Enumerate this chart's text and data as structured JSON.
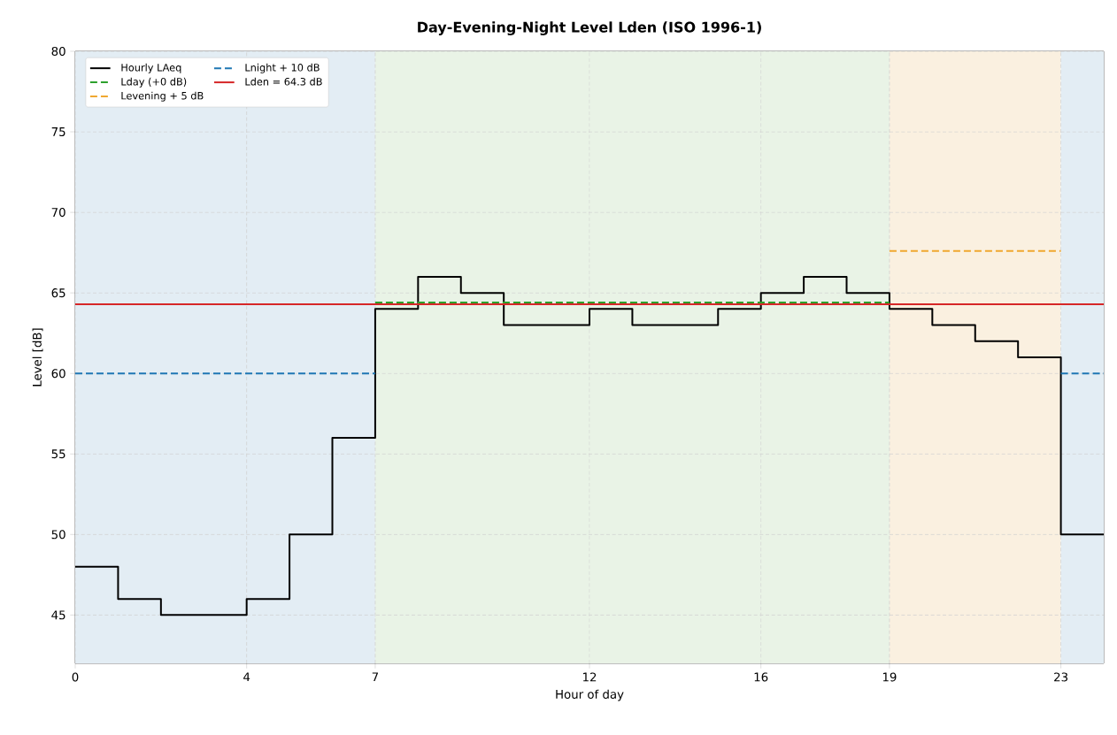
{
  "chart_data": {
    "type": "step",
    "title": "Day-Evening-Night Level Lden (ISO 1996-1)",
    "xlabel": "Hour of day",
    "ylabel": "Level [dB]",
    "xlim": [
      0,
      24
    ],
    "ylim": [
      42,
      80
    ],
    "xticks": [
      0,
      4,
      7,
      12,
      16,
      19,
      23
    ],
    "yticks": [
      45,
      50,
      55,
      60,
      65,
      70,
      75,
      80
    ],
    "grid": true,
    "legend": "top left",
    "series": [
      {
        "name": "Hourly LAeq",
        "color": "#000000",
        "x": [
          0,
          1,
          2,
          3,
          4,
          5,
          6,
          7,
          8,
          9,
          10,
          11,
          12,
          13,
          14,
          15,
          16,
          17,
          18,
          19,
          20,
          21,
          22,
          23,
          24
        ],
        "values": [
          48,
          46,
          45,
          45,
          46,
          50,
          56,
          64,
          66,
          65,
          63,
          63,
          64,
          63,
          63,
          64,
          65,
          66,
          65,
          64,
          63,
          62,
          61,
          50,
          50
        ]
      },
      {
        "name": "Lday (+0 dB)",
        "type": "line",
        "line_style": "dashed",
        "color": "#2ca02c",
        "x": [
          7,
          19
        ],
        "values": [
          64.4,
          64.4
        ]
      },
      {
        "name": "Levening + 5 dB",
        "type": "line",
        "line_style": "dashed",
        "color": "#f0a830",
        "x": [
          19,
          23
        ],
        "values": [
          67.6,
          67.6
        ]
      },
      {
        "name": "Lnight + 10 dB",
        "type": "line",
        "line_style": "dashed",
        "color": "#1f77b4",
        "x": [
          0,
          7,
          null,
          23,
          24
        ],
        "values": [
          60,
          60,
          null,
          60,
          60
        ]
      },
      {
        "name": "Lden = 64.3 dB",
        "type": "line",
        "line_style": "solid",
        "color": "#d62728",
        "x": [
          0,
          24
        ],
        "values": [
          64.3,
          64.3
        ]
      }
    ],
    "bands": [
      {
        "axis": "x",
        "from": 0,
        "to": 7,
        "color": "#e3edf4"
      },
      {
        "axis": "x",
        "from": 7,
        "to": 19,
        "color": "#e9f3e6"
      },
      {
        "axis": "x",
        "from": 19,
        "to": 23,
        "color": "#faf0e0"
      },
      {
        "axis": "x",
        "from": 23,
        "to": 24,
        "color": "#e3edf4"
      }
    ]
  }
}
